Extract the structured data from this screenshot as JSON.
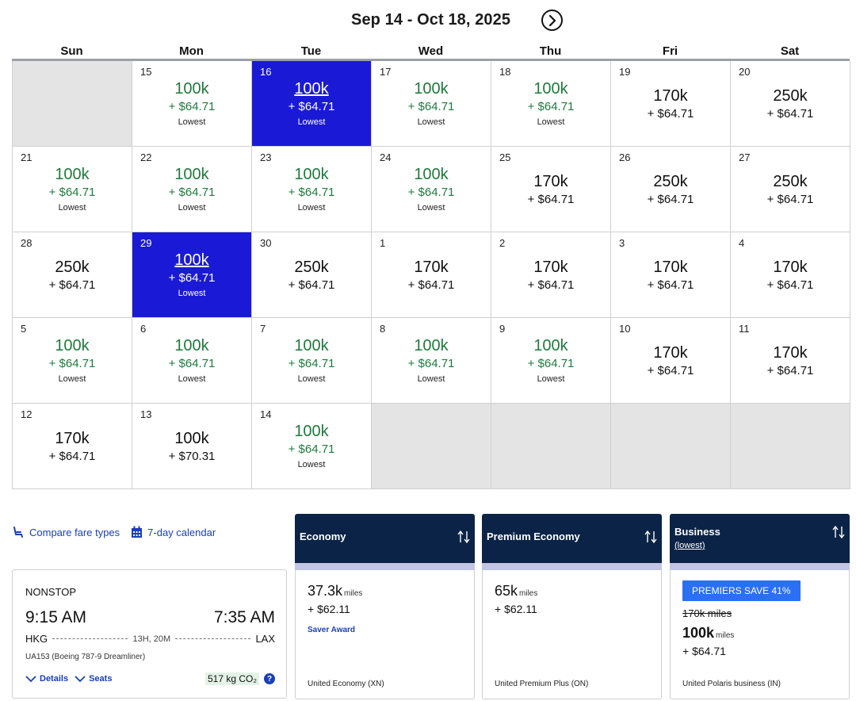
{
  "header": {
    "date_range": "Sep 14 - Oct 18, 2025",
    "next_icon": "chevron-right-circle-icon"
  },
  "weekdays": [
    "Sun",
    "Mon",
    "Tue",
    "Wed",
    "Thu",
    "Fri",
    "Sat"
  ],
  "lowest_label": "Lowest",
  "days": [
    {
      "empty": true
    },
    {
      "day": "15",
      "miles": "100k",
      "tax": "+ $64.71",
      "lowest": true
    },
    {
      "day": "16",
      "miles": "100k",
      "tax": "+ $64.71",
      "lowest": true,
      "selected": true
    },
    {
      "day": "17",
      "miles": "100k",
      "tax": "+ $64.71",
      "lowest": true
    },
    {
      "day": "18",
      "miles": "100k",
      "tax": "+ $64.71",
      "lowest": true
    },
    {
      "day": "19",
      "miles": "170k",
      "tax": "+ $64.71"
    },
    {
      "day": "20",
      "miles": "250k",
      "tax": "+ $64.71"
    },
    {
      "day": "21",
      "miles": "100k",
      "tax": "+ $64.71",
      "lowest": true
    },
    {
      "day": "22",
      "miles": "100k",
      "tax": "+ $64.71",
      "lowest": true
    },
    {
      "day": "23",
      "miles": "100k",
      "tax": "+ $64.71",
      "lowest": true
    },
    {
      "day": "24",
      "miles": "100k",
      "tax": "+ $64.71",
      "lowest": true
    },
    {
      "day": "25",
      "miles": "170k",
      "tax": "+ $64.71"
    },
    {
      "day": "26",
      "miles": "250k",
      "tax": "+ $64.71"
    },
    {
      "day": "27",
      "miles": "250k",
      "tax": "+ $64.71"
    },
    {
      "day": "28",
      "miles": "250k",
      "tax": "+ $64.71"
    },
    {
      "day": "29",
      "miles": "100k",
      "tax": "+ $64.71",
      "lowest": true,
      "selected": true
    },
    {
      "day": "30",
      "miles": "250k",
      "tax": "+ $64.71"
    },
    {
      "day": "1",
      "miles": "170k",
      "tax": "+ $64.71"
    },
    {
      "day": "2",
      "miles": "170k",
      "tax": "+ $64.71"
    },
    {
      "day": "3",
      "miles": "170k",
      "tax": "+ $64.71"
    },
    {
      "day": "4",
      "miles": "170k",
      "tax": "+ $64.71"
    },
    {
      "day": "5",
      "miles": "100k",
      "tax": "+ $64.71",
      "lowest": true
    },
    {
      "day": "6",
      "miles": "100k",
      "tax": "+ $64.71",
      "lowest": true
    },
    {
      "day": "7",
      "miles": "100k",
      "tax": "+ $64.71",
      "lowest": true
    },
    {
      "day": "8",
      "miles": "100k",
      "tax": "+ $64.71",
      "lowest": true
    },
    {
      "day": "9",
      "miles": "100k",
      "tax": "+ $64.71",
      "lowest": true
    },
    {
      "day": "10",
      "miles": "170k",
      "tax": "+ $64.71"
    },
    {
      "day": "11",
      "miles": "170k",
      "tax": "+ $64.71"
    },
    {
      "day": "12",
      "miles": "170k",
      "tax": "+ $64.71"
    },
    {
      "day": "13",
      "miles": "100k",
      "tax": "+ $70.31"
    },
    {
      "day": "14",
      "miles": "100k",
      "tax": "+ $64.71",
      "lowest": true
    },
    {
      "empty": true
    },
    {
      "empty": true
    },
    {
      "empty": true
    },
    {
      "empty": true
    }
  ],
  "links": {
    "compare": "Compare fare types",
    "compare_icon": "seat-icon",
    "calendar": "7-day calendar",
    "calendar_icon": "calendar-icon"
  },
  "flight": {
    "stops": "NONSTOP",
    "depart_time": "9:15 AM",
    "arrive_time": "7:35 AM",
    "origin": "HKG",
    "destination": "LAX",
    "duration": "13H, 20M",
    "aircraft": "UA153 (Boeing 787-9 Dreamliner)",
    "details_label": "Details",
    "seats_label": "Seats",
    "co2": "517 kg CO₂",
    "info_icon": "?"
  },
  "fares": {
    "economy": {
      "title": "Economy",
      "miles": "37.3k",
      "miles_unit": "miles",
      "tax": "+ $62.11",
      "tag": "Saver Award",
      "class_name": "United Economy (XN)"
    },
    "premium": {
      "title": "Premium Economy",
      "miles": "65k",
      "miles_unit": "miles",
      "tax": "+ $62.11",
      "class_name": "United Premium Plus (ON)"
    },
    "business": {
      "title": "Business",
      "subtitle": "(lowest)",
      "badge": "PREMIERS SAVE 41%",
      "old_price": "170k miles",
      "miles": "100k",
      "miles_unit": "miles",
      "tax": "+ $64.71",
      "class_name": "United Polaris business (IN)"
    },
    "sort_icon": "sort-arrows-icon"
  },
  "colors": {
    "accent": "#1a1ad6",
    "lowest_green": "#1e7a3c",
    "navy": "#0b2346",
    "link_blue": "#1a3fb8"
  }
}
